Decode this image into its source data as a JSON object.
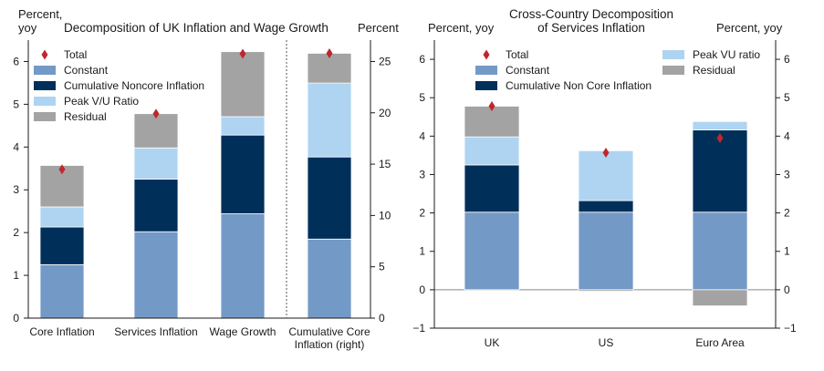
{
  "colors": {
    "constant": "#7399c6",
    "noncore": "#00305a",
    "vu": "#aed4f1",
    "residual": "#a3a3a3",
    "total": "#c0272d",
    "axis": "#1a1a1a",
    "divider": "#555555",
    "zero_line": "#888888"
  },
  "chart_data": [
    {
      "type": "bar",
      "stacked": true,
      "title": "Decomposition of UK Inflation and Wage Growth",
      "ylabel_left": "Percent,\nyoy",
      "ylabel_right": "Percent",
      "ylim_left": [
        0,
        6.5
      ],
      "ylim_right": [
        0,
        27.083
      ],
      "yticks_left": [
        0,
        1,
        2,
        3,
        4,
        5,
        6
      ],
      "yticks_right": [
        0,
        5,
        10,
        15,
        20,
        25
      ],
      "legend_position": "top-left",
      "legend": [
        {
          "key": "total",
          "label": "Total",
          "marker": "diamond"
        },
        {
          "key": "constant",
          "label": "Constant",
          "marker": "box"
        },
        {
          "key": "noncore",
          "label": "Cumulative Noncore Inflation",
          "marker": "box"
        },
        {
          "key": "vu",
          "label": "Peak V/U Ratio",
          "marker": "box"
        },
        {
          "key": "residual",
          "label": "Residual",
          "marker": "box"
        }
      ],
      "stack_order": [
        "constant",
        "noncore",
        "vu",
        "residual"
      ],
      "categories": [
        {
          "label": "Core Inflation",
          "axis": "left",
          "constant": 1.25,
          "noncore": 0.88,
          "vu": 0.47,
          "residual": 0.97,
          "total": 3.48
        },
        {
          "label": "Services Inflation",
          "axis": "left",
          "constant": 2.02,
          "noncore": 1.23,
          "vu": 0.73,
          "residual": 0.8,
          "total": 4.78
        },
        {
          "label": "Wage Growth",
          "axis": "left",
          "constant": 2.44,
          "noncore": 1.84,
          "vu": 0.43,
          "residual": 1.52,
          "total": 6.18
        },
        {
          "label": "Cumulative Core\nInflation (right)",
          "axis": "right",
          "constant": 7.7,
          "noncore": 8.0,
          "vu": 7.2,
          "residual": 2.9,
          "total": 25.8
        }
      ]
    },
    {
      "type": "bar",
      "stacked": true,
      "title": "Cross-Country Decomposition\nof Services Inflation",
      "ylabel_left": "Percent, yoy",
      "ylabel_right": "Percent, yoy",
      "ylim": [
        -1,
        6.5
      ],
      "yticks": [
        -1,
        0,
        1,
        2,
        3,
        4,
        5,
        6
      ],
      "legend_position": "top",
      "legend": [
        {
          "key": "total",
          "label": "Total",
          "marker": "diamond"
        },
        {
          "key": "constant",
          "label": "Constant",
          "marker": "box"
        },
        {
          "key": "noncore",
          "label": "Cumulative Non Core Inflation",
          "marker": "box"
        },
        {
          "key": "vu",
          "label": "Peak VU ratio",
          "marker": "box"
        },
        {
          "key": "residual",
          "label": "Residual",
          "marker": "box"
        }
      ],
      "stack_order": [
        "constant",
        "noncore",
        "vu",
        "residual"
      ],
      "categories": [
        {
          "label": "UK",
          "constant": 2.02,
          "noncore": 1.23,
          "vu": 0.73,
          "residual": 0.8,
          "total": 4.78
        },
        {
          "label": "US",
          "constant": 2.02,
          "noncore": 0.3,
          "vu": 1.3,
          "residual": -0.04,
          "total": 3.57
        },
        {
          "label": "Euro Area",
          "constant": 2.02,
          "noncore": 2.14,
          "vu": 0.22,
          "residual": -0.42,
          "total": 3.95
        }
      ]
    }
  ]
}
